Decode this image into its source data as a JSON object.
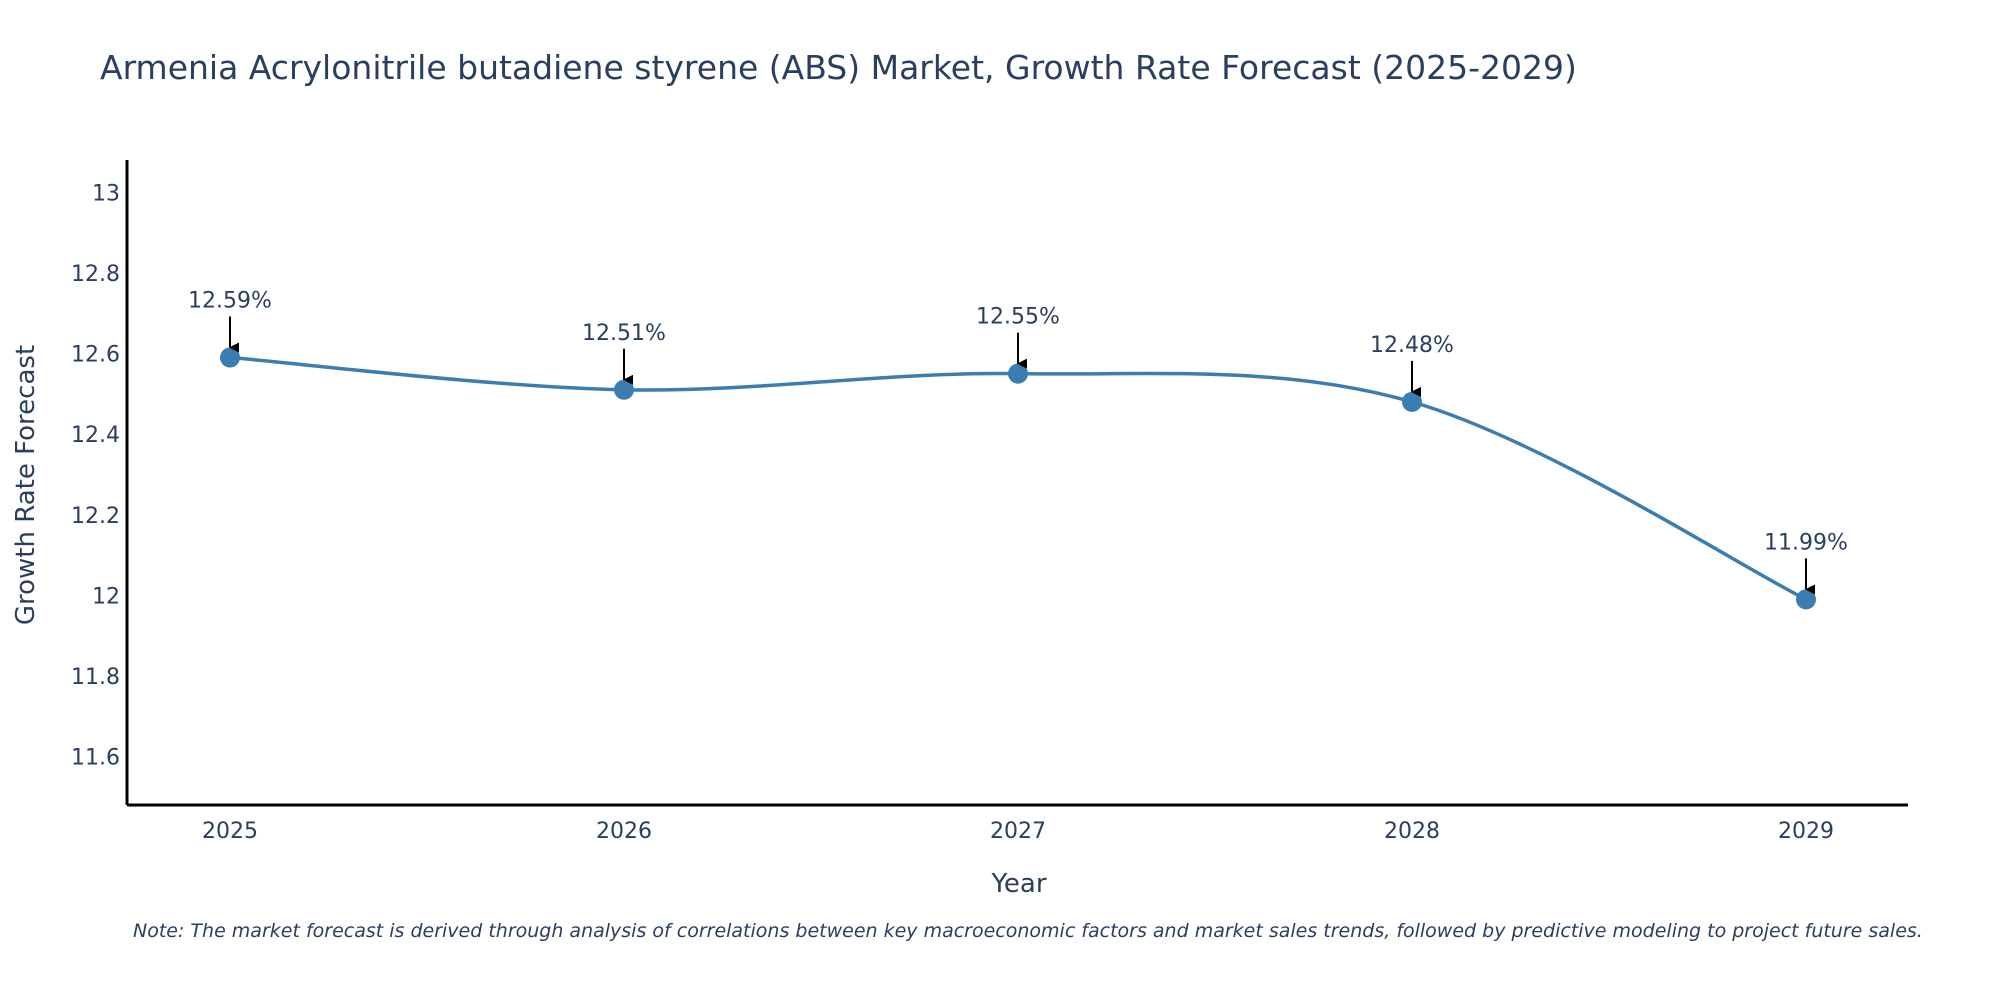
{
  "chart_data": {
    "type": "line",
    "title": "Armenia Acrylonitrile butadiene styrene (ABS) Market, Growth Rate Forecast (2025-2029)",
    "xlabel": "Year",
    "ylabel": "Growth Rate Forecast",
    "categories": [
      "2025",
      "2026",
      "2027",
      "2028",
      "2029"
    ],
    "values": [
      12.59,
      12.51,
      12.55,
      12.48,
      11.99
    ],
    "data_labels": [
      "12.59%",
      "12.51%",
      "12.55%",
      "12.48%",
      "11.99%"
    ],
    "y_ticks": [
      11.6,
      11.8,
      12,
      12.2,
      12.4,
      12.6,
      12.8,
      13
    ],
    "y_tick_labels": [
      "11.6",
      "11.8",
      "12",
      "12.2",
      "12.4",
      "12.6",
      "12.8",
      "13"
    ],
    "ylim": [
      11.48,
      13.08
    ],
    "grid": false,
    "line_color": "#3b7db1",
    "marker_color": "#3b7db1",
    "axis_color": "#000000",
    "note": "Note: The market forecast is derived through analysis of correlations between key macroeconomic factors and market sales trends, followed by predictive modeling to project future sales."
  }
}
